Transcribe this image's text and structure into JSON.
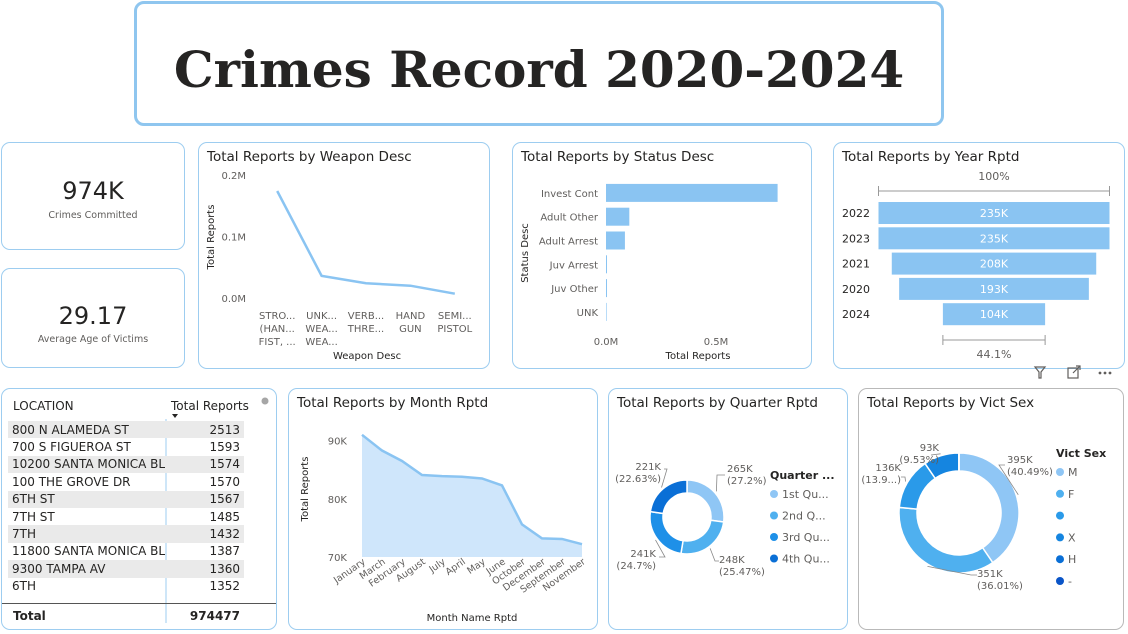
{
  "header": {
    "title": "Crimes Record 2020-2024"
  },
  "kpis": [
    {
      "value": "974K",
      "label": "Crimes Committed"
    },
    {
      "value": "29.17",
      "label": "Average Age of Victims"
    }
  ],
  "weapon_chart": {
    "title": "Total Reports by Weapon Desc",
    "chart_data": {
      "type": "line",
      "title": "Total Reports by Weapon Desc",
      "xlabel": "Weapon Desc",
      "ylabel": "Total Reports",
      "ylim": [
        0,
        200000
      ],
      "yticks": [
        "0.0M",
        "0.1M",
        "0.2M"
      ],
      "categories": [
        [
          "STRO...",
          "(HAN...",
          "FIST, ..."
        ],
        [
          "UNK...",
          "WEA...",
          "WEA..."
        ],
        [
          "VERB...",
          "THRE..."
        ],
        [
          "HAND",
          "GUN"
        ],
        [
          "SEMI...",
          "PISTOL"
        ]
      ],
      "values": [
        174000,
        36000,
        24000,
        20000,
        7000
      ]
    }
  },
  "status_chart": {
    "title": "Total Reports by Status Desc",
    "chart_data": {
      "type": "bar",
      "orientation": "horizontal",
      "title": "Total Reports by Status Desc",
      "xlabel": "Total Reports",
      "ylabel": "Status Desc",
      "xlim": [
        0,
        1000000
      ],
      "xticks": [
        "0.0M",
        "0.5M"
      ],
      "categories": [
        "Invest Cont",
        "Adult Other",
        "Adult Arrest",
        "Juv Arrest",
        "Juv Other",
        "UNK"
      ],
      "values": [
        780000,
        106000,
        86000,
        3000,
        1000,
        0
      ]
    }
  },
  "year_chart": {
    "title": "Total Reports by Year Rptd",
    "top_pct": "100%",
    "bottom_pct": "44.1%",
    "chart_data": {
      "type": "funnel",
      "title": "Total Reports by Year Rptd",
      "categories": [
        "2022",
        "2023",
        "2021",
        "2020",
        "2024"
      ],
      "values": [
        235,
        235,
        208,
        193,
        104
      ],
      "labels": [
        "235K",
        "235K",
        "208K",
        "193K",
        "104K"
      ]
    }
  },
  "location_table": {
    "col1": "LOCATION",
    "col2": "Total Reports",
    "rows": [
      [
        "800 N ALAMEDA ST",
        "2513"
      ],
      [
        "700 S FIGUEROA ST",
        "1593"
      ],
      [
        "10200 SANTA MONICA BL",
        "1574"
      ],
      [
        "100 THE GROVE DR",
        "1570"
      ],
      [
        "6TH ST",
        "1567"
      ],
      [
        "7TH ST",
        "1485"
      ],
      [
        "7TH",
        "1432"
      ],
      [
        "11800 SANTA MONICA BL",
        "1387"
      ],
      [
        "9300 TAMPA AV",
        "1360"
      ],
      [
        "6TH",
        "1352"
      ]
    ],
    "total_label": "Total",
    "total_value": "974477"
  },
  "month_chart": {
    "title": "Total Reports by Month Rptd",
    "chart_data": {
      "type": "area",
      "title": "Total Reports by Month Rptd",
      "xlabel": "Month Name Rptd",
      "ylabel": "Total Reports",
      "ylim": [
        70000,
        92000
      ],
      "yticks": [
        "70K",
        "80K",
        "90K"
      ],
      "categories": [
        "January",
        "March",
        "February",
        "August",
        "July",
        "April",
        "May",
        "June",
        "October",
        "December",
        "September",
        "November"
      ],
      "values": [
        91000,
        88300,
        86500,
        84100,
        83900,
        83800,
        83500,
        82300,
        75600,
        73200,
        73100,
        72200
      ]
    }
  },
  "quarter_chart": {
    "title": "Total Reports by Quarter Rptd",
    "legend_title": "Quarter ...",
    "chart_data": {
      "type": "pie",
      "title": "Total Reports by Quarter Rptd",
      "categories": [
        "1st Qu...",
        "2nd Q...",
        "3rd Qu...",
        "4th Qu..."
      ],
      "values": [
        265,
        248,
        241,
        221
      ],
      "value_labels": [
        "265K",
        "248K",
        "241K",
        "221K"
      ],
      "pct_labels": [
        "(27.2%)",
        "(25.47%)",
        "(24.7%)",
        "(22.63%)"
      ],
      "colors": [
        "#8fc6f5",
        "#4fb0ef",
        "#1e90e8",
        "#0a6fd6"
      ]
    }
  },
  "sex_chart": {
    "title": "Total Reports by Vict Sex",
    "legend_title": "Vict Sex",
    "chart_data": {
      "type": "pie",
      "title": "Total Reports by Vict Sex",
      "categories": [
        "M",
        "F",
        "",
        "X",
        "H",
        "-"
      ],
      "values": [
        395,
        351,
        136,
        93,
        0.3,
        0.05
      ],
      "value_labels": [
        "395K",
        "351K",
        "136K",
        "93K",
        "",
        ""
      ],
      "pct_labels": [
        "(40.49%)",
        "(36.01%)",
        "(13.9...)",
        "(9.53%)",
        "",
        ""
      ],
      "colors": [
        "#8fc6f5",
        "#4fb0ef",
        "#2a9ae9",
        "#1585e0",
        "#0a6fd6",
        "#0a55c8"
      ]
    }
  }
}
